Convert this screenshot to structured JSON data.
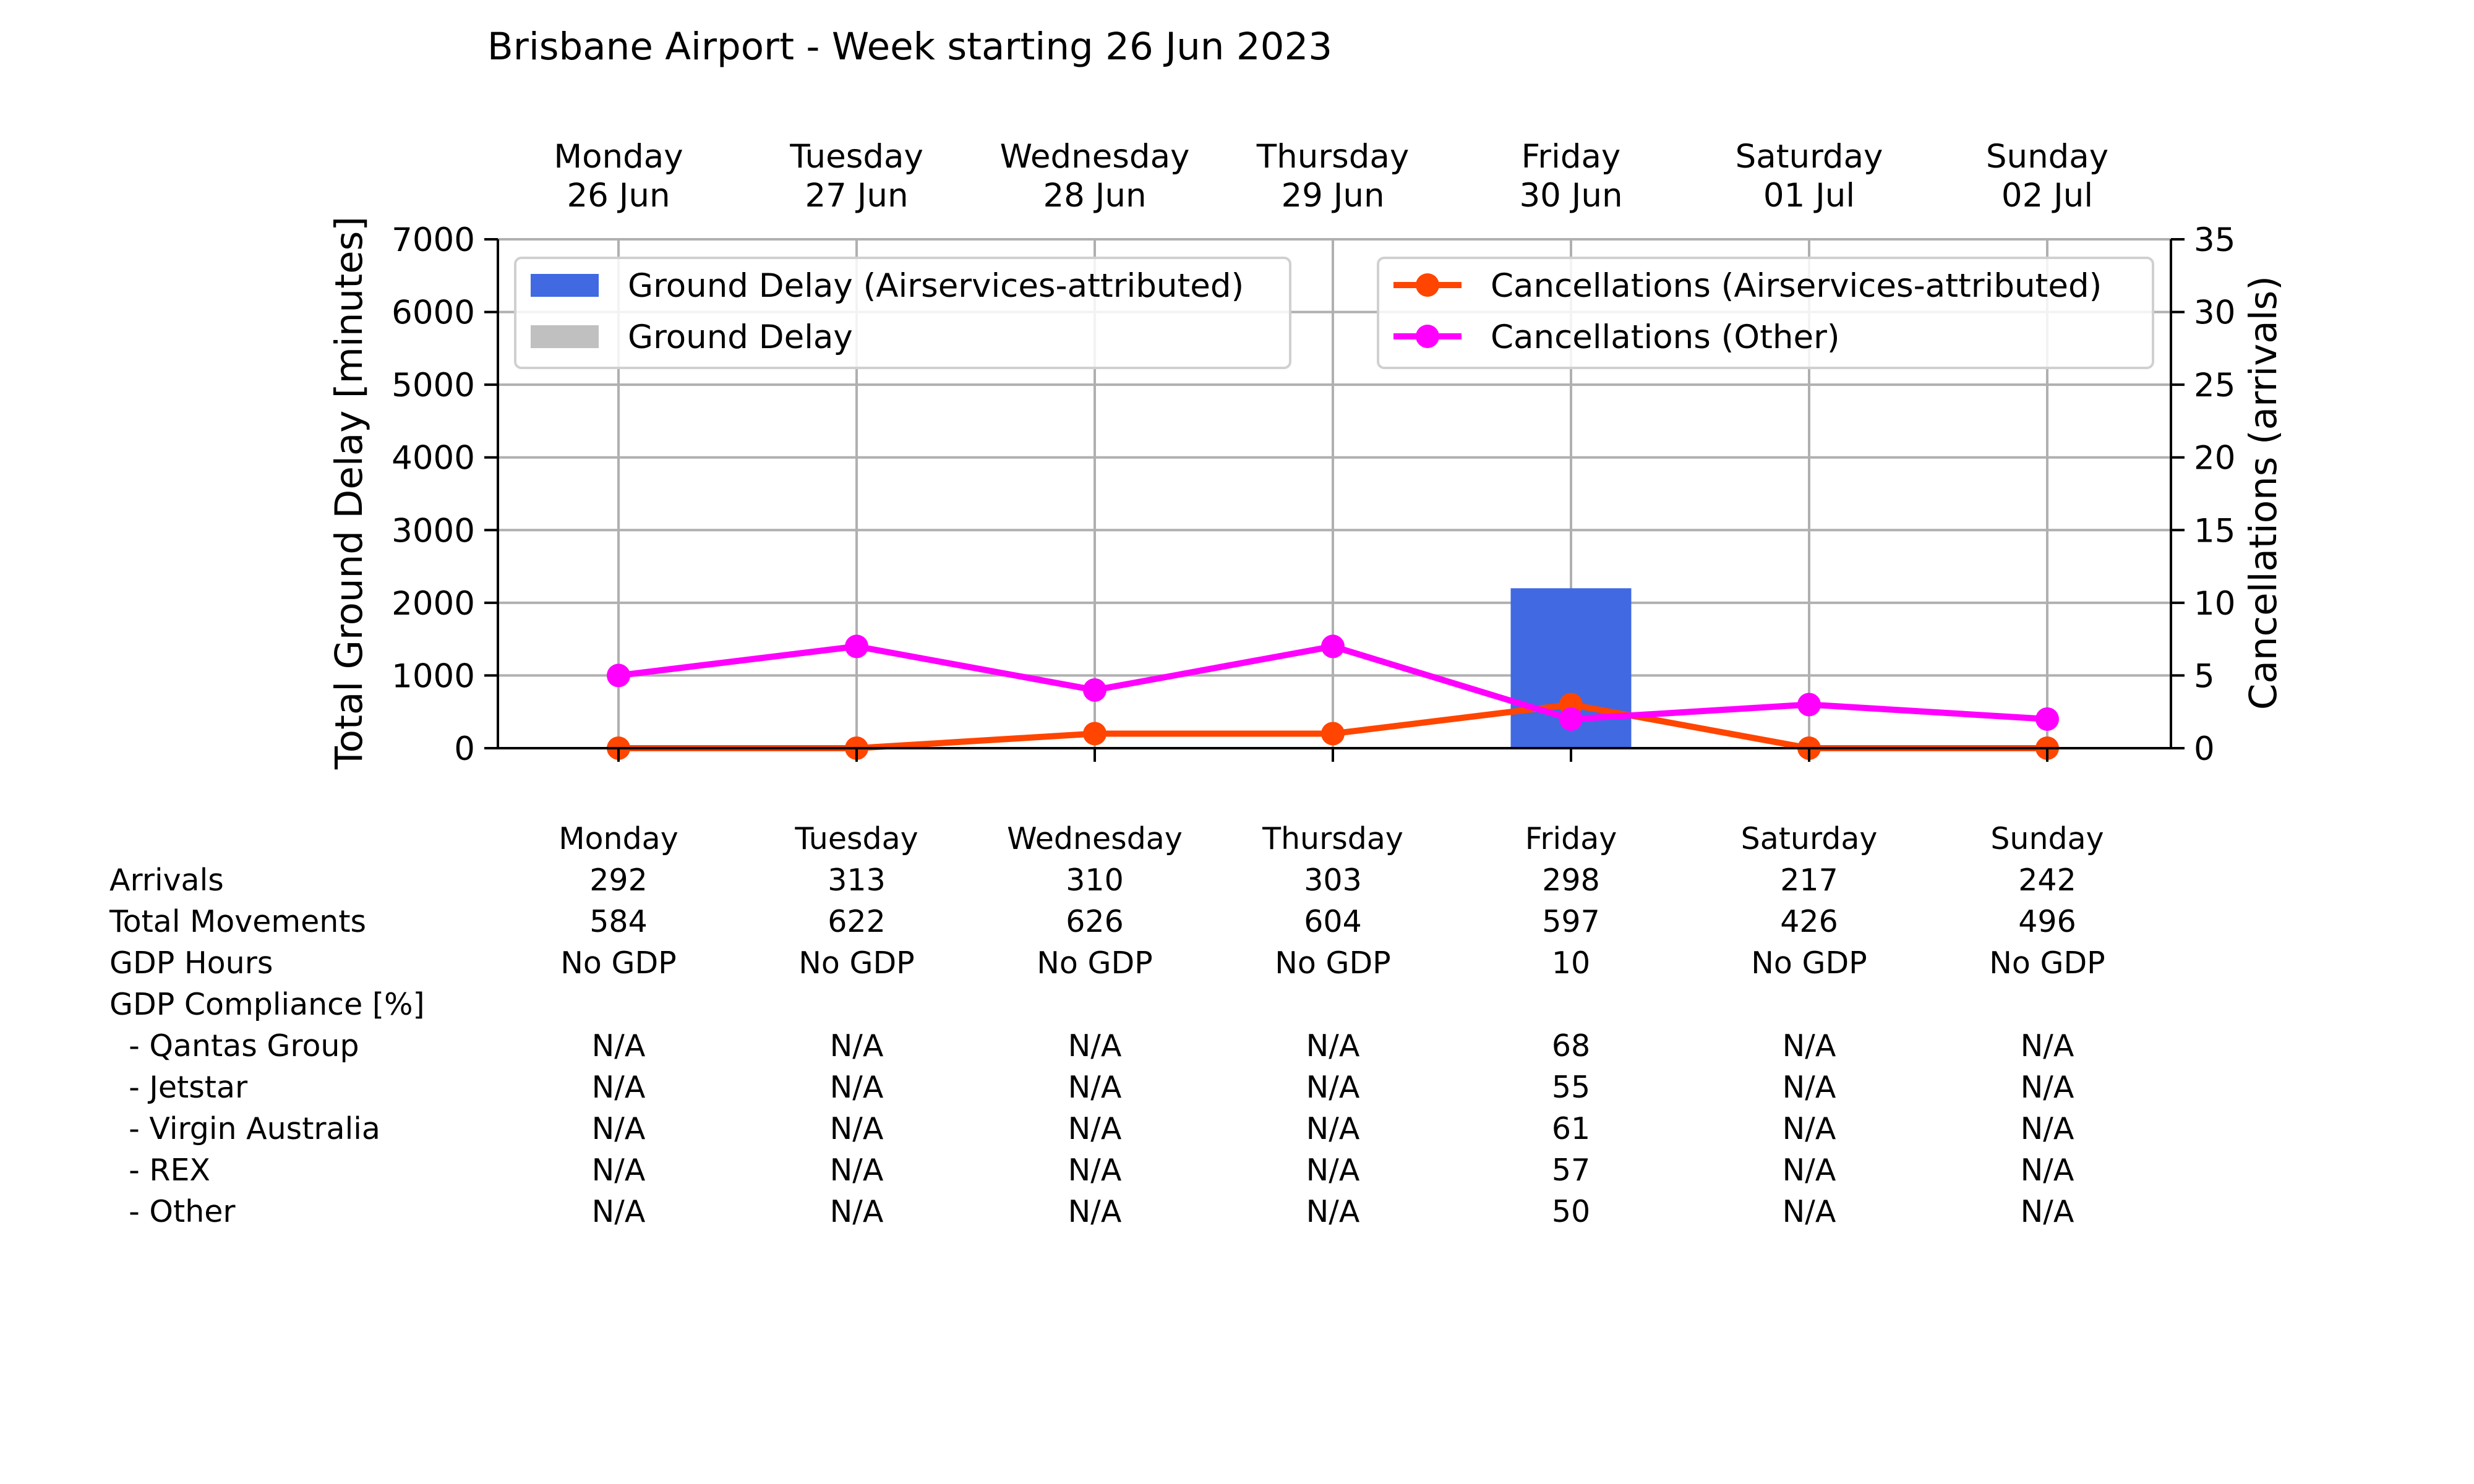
{
  "chart_data": {
    "type": "bar",
    "title": "Brisbane Airport - Week starting 26 Jun 2023",
    "days": [
      {
        "name": "Monday",
        "date": "26 Jun"
      },
      {
        "name": "Tuesday",
        "date": "27 Jun"
      },
      {
        "name": "Wednesday",
        "date": "28 Jun"
      },
      {
        "name": "Thursday",
        "date": "29 Jun"
      },
      {
        "name": "Friday",
        "date": "30 Jun"
      },
      {
        "name": "Saturday",
        "date": "01 Jul"
      },
      {
        "name": "Sunday",
        "date": "02 Jul"
      }
    ],
    "ylabel_left": "Total Ground Delay [minutes]",
    "ylabel_right": "Cancellations (arrivals)",
    "ylim_left": [
      0,
      7000
    ],
    "ylim_right": [
      0,
      35
    ],
    "yticks_left": [
      0,
      1000,
      2000,
      3000,
      4000,
      5000,
      6000,
      7000
    ],
    "yticks_right": [
      0,
      5,
      10,
      15,
      20,
      25,
      30,
      35
    ],
    "grid": true,
    "bar_series": [
      {
        "name": "Ground Delay (Airservices-attributed)",
        "color": "#4169e1",
        "values": [
          0,
          0,
          0,
          0,
          2200,
          0,
          0
        ]
      },
      {
        "name": "Ground Delay",
        "color": "#c0c0c0",
        "values": [
          0,
          0,
          0,
          0,
          0,
          0,
          0
        ]
      }
    ],
    "line_series": [
      {
        "name": "Cancellations (Airservices-attributed)",
        "color": "#ff4500",
        "values": [
          0,
          0,
          1,
          1,
          3,
          0,
          0
        ]
      },
      {
        "name": "Cancellations (Other)",
        "color": "#ff00ff",
        "values": [
          5,
          7,
          4,
          7,
          2,
          3,
          2
        ]
      }
    ],
    "legend_left_placement": "upper-left",
    "legend_right_placement": "upper-right"
  },
  "table": {
    "header": [
      "Monday",
      "Tuesday",
      "Wednesday",
      "Thursday",
      "Friday",
      "Saturday",
      "Sunday"
    ],
    "rows": [
      {
        "label": "Arrivals",
        "values": [
          "292",
          "313",
          "310",
          "303",
          "298",
          "217",
          "242"
        ]
      },
      {
        "label": "Total Movements",
        "values": [
          "584",
          "622",
          "626",
          "604",
          "597",
          "426",
          "496"
        ]
      },
      {
        "label": "GDP Hours",
        "values": [
          "No GDP",
          "No GDP",
          "No GDP",
          "No GDP",
          "10",
          "No GDP",
          "No GDP"
        ]
      },
      {
        "label": "GDP Compliance [%]",
        "values": [
          "",
          "",
          "",
          "",
          "",
          "",
          ""
        ]
      },
      {
        "label": "  - Qantas Group",
        "values": [
          "N/A",
          "N/A",
          "N/A",
          "N/A",
          "68",
          "N/A",
          "N/A"
        ]
      },
      {
        "label": "  - Jetstar",
        "values": [
          "N/A",
          "N/A",
          "N/A",
          "N/A",
          "55",
          "N/A",
          "N/A"
        ]
      },
      {
        "label": "  - Virgin Australia",
        "values": [
          "N/A",
          "N/A",
          "N/A",
          "N/A",
          "61",
          "N/A",
          "N/A"
        ]
      },
      {
        "label": "  - REX",
        "values": [
          "N/A",
          "N/A",
          "N/A",
          "N/A",
          "57",
          "N/A",
          "N/A"
        ]
      },
      {
        "label": "  - Other",
        "values": [
          "N/A",
          "N/A",
          "N/A",
          "N/A",
          "50",
          "N/A",
          "N/A"
        ]
      }
    ]
  }
}
